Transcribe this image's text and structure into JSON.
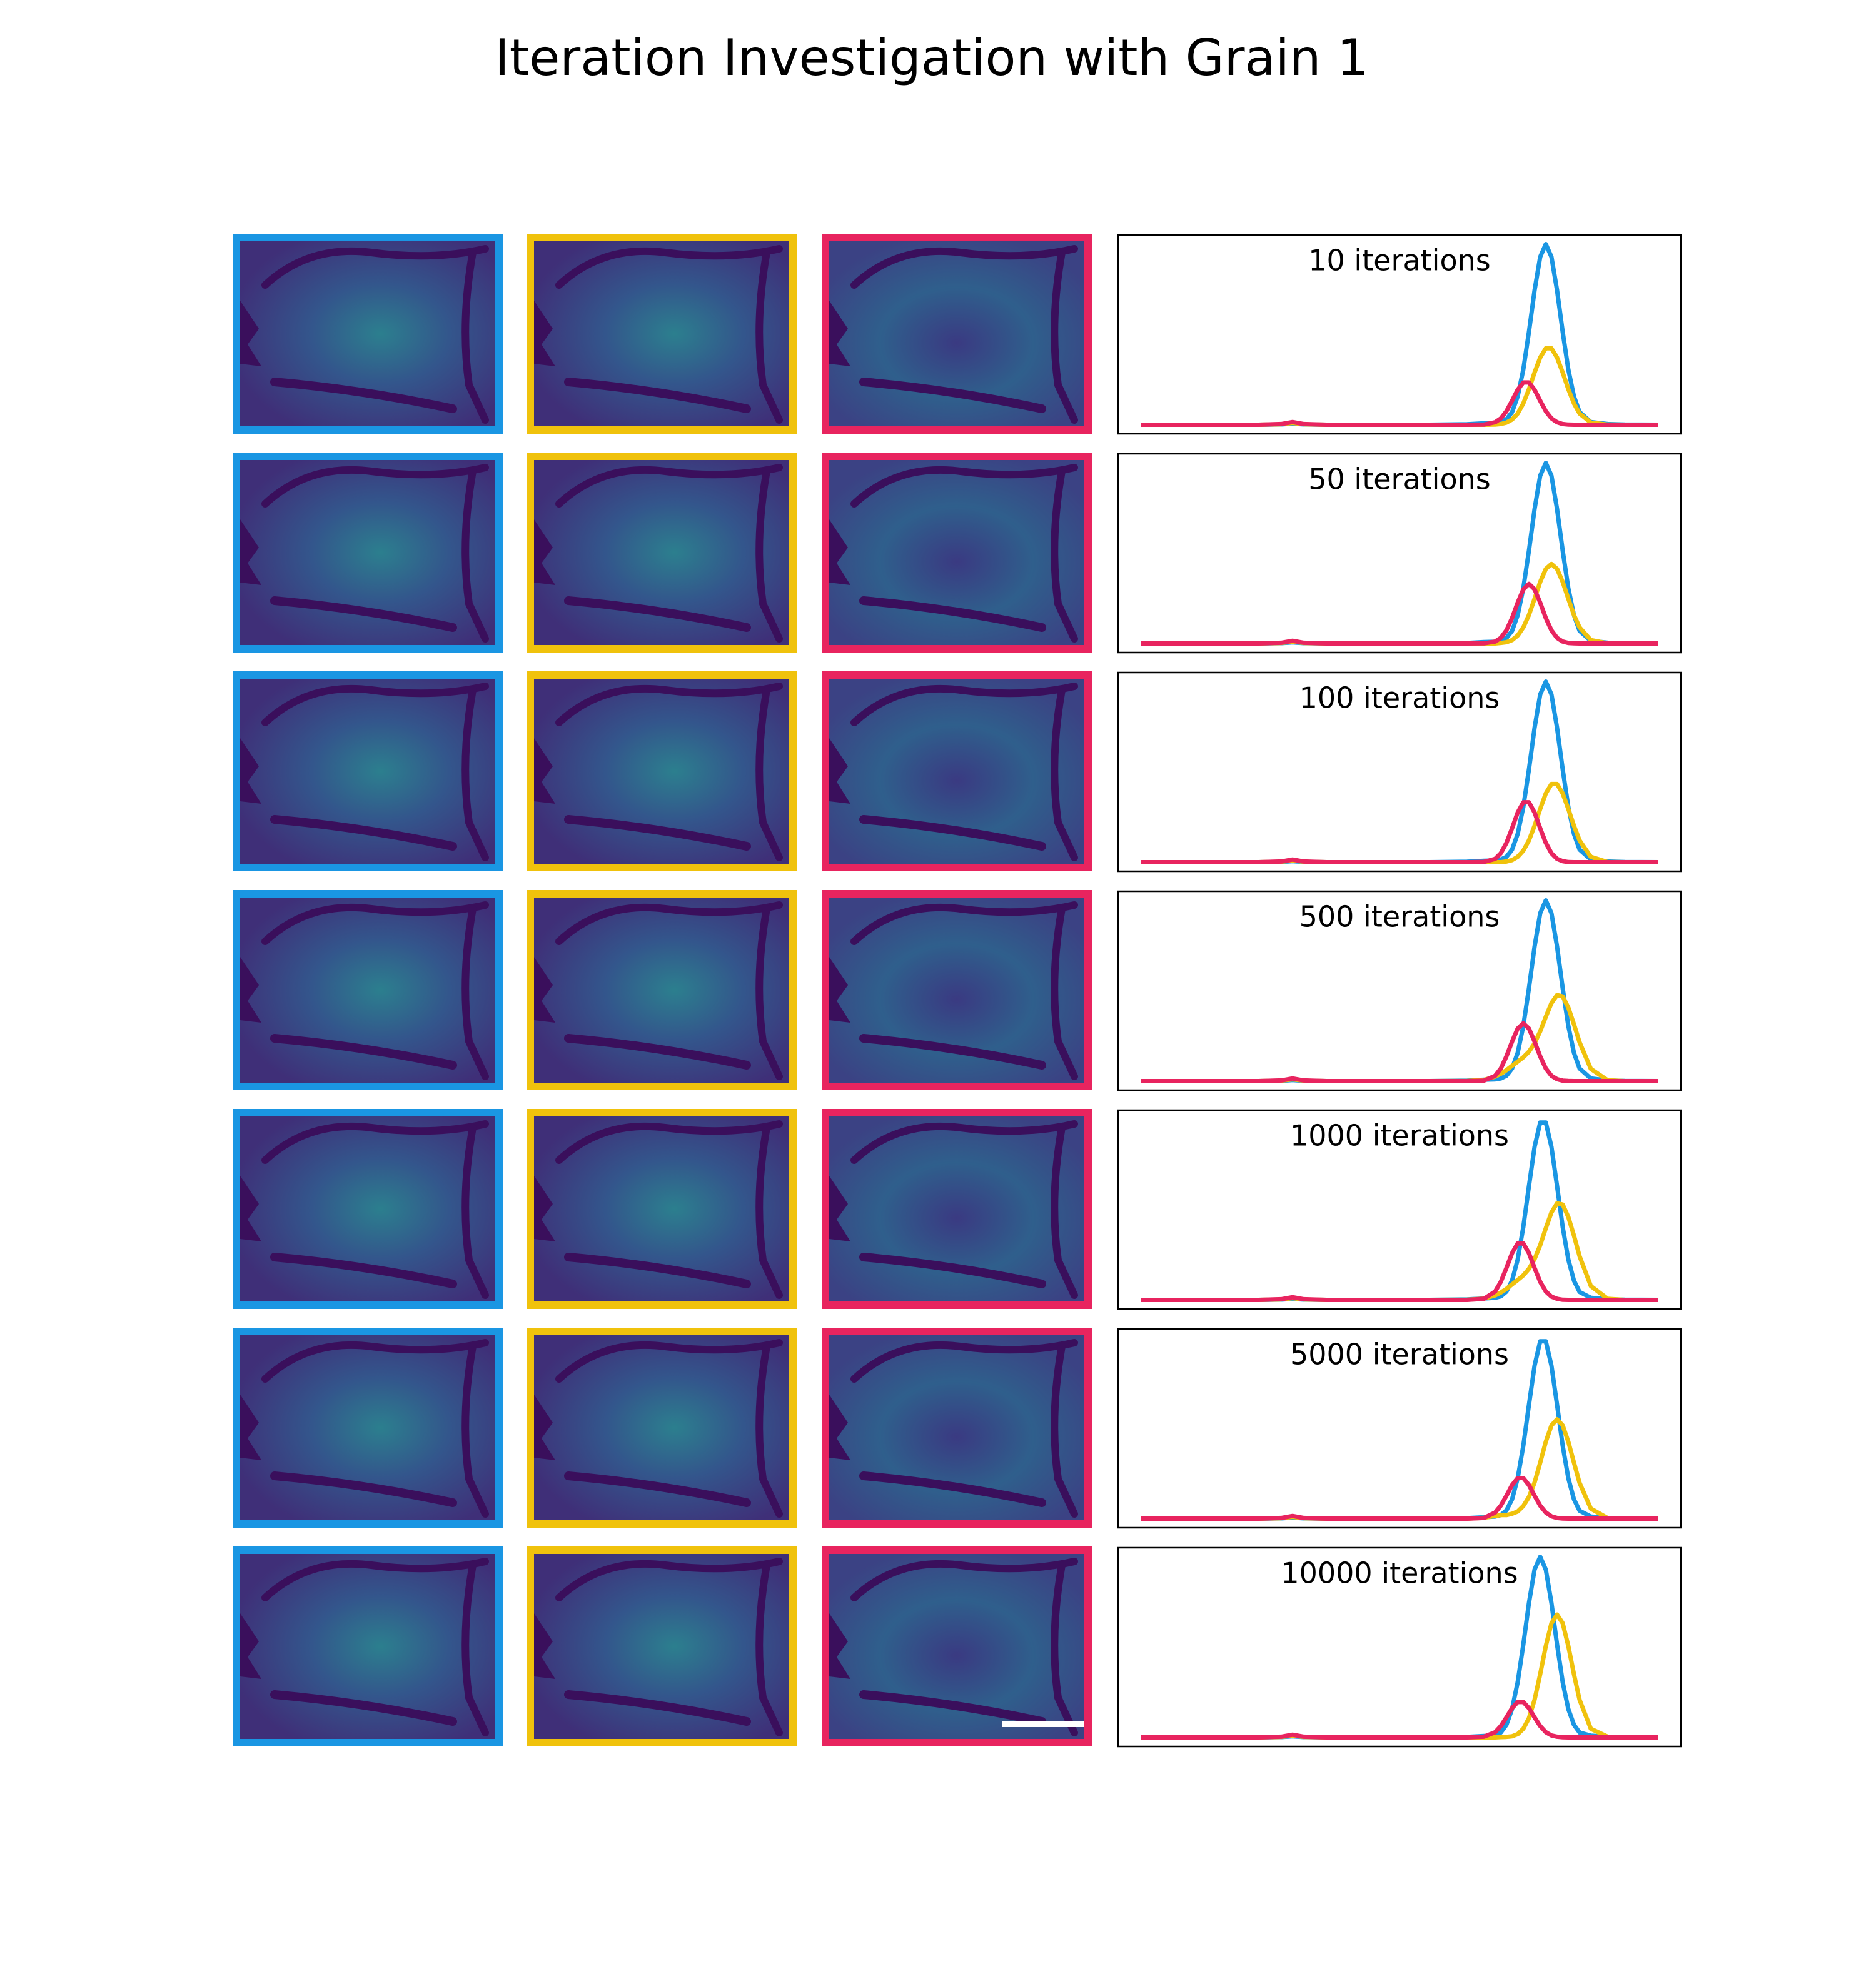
{
  "title": "Iteration Investigation with Grain 1",
  "chart_data": [
    {
      "type": "line",
      "title": "10 iterations",
      "xlim": [
        0,
        100
      ],
      "ylim": [
        -0.05,
        1.05
      ],
      "x": [
        4,
        25,
        29,
        31,
        33,
        37,
        55,
        62,
        65,
        67,
        68,
        69,
        70,
        71,
        72,
        73,
        74,
        75,
        76,
        77,
        78,
        79,
        80,
        81,
        82,
        84,
        87,
        90,
        96
      ],
      "series": [
        {
          "color": "#1a96e3",
          "values": [
            0,
            0,
            0.002,
            0.006,
            0.002,
            0,
            0,
            0.003,
            0.008,
            0.01,
            0.015,
            0.03,
            0.07,
            0.157,
            0.306,
            0.514,
            0.744,
            0.929,
            1,
            0.929,
            0.744,
            0.514,
            0.306,
            0.157,
            0.07,
            0.015,
            0.004,
            0.001,
            0
          ]
        },
        {
          "color": "#f0c20c",
          "values": [
            0,
            0,
            0.003,
            0.01,
            0.003,
            0,
            0,
            0,
            0,
            0.001,
            0.004,
            0.012,
            0.029,
            0.062,
            0.118,
            0.197,
            0.289,
            0.372,
            0.423,
            0.423,
            0.372,
            0.289,
            0.197,
            0.118,
            0.062,
            0.012,
            0.001,
            0,
            0
          ]
        },
        {
          "color": "#e8245f",
          "values": [
            0,
            0,
            0.004,
            0.015,
            0.004,
            0,
            0,
            0,
            0.001,
            0.014,
            0.035,
            0.075,
            0.133,
            0.194,
            0.234,
            0.234,
            0.194,
            0.133,
            0.075,
            0.035,
            0.014,
            0.004,
            0.001,
            0,
            0,
            0,
            0,
            0,
            0
          ]
        }
      ]
    },
    {
      "type": "line",
      "title": "50 iterations",
      "xlim": [
        0,
        100
      ],
      "ylim": [
        -0.05,
        1.05
      ],
      "x": [
        4,
        25,
        29,
        31,
        33,
        37,
        55,
        62,
        65,
        67,
        68,
        69,
        70,
        71,
        72,
        73,
        74,
        75,
        76,
        77,
        78,
        79,
        80,
        81,
        82,
        84,
        87,
        90,
        96
      ],
      "series": [
        {
          "color": "#1a96e3",
          "values": [
            0,
            0,
            0.002,
            0.006,
            0.002,
            0,
            0,
            0.003,
            0.008,
            0.01,
            0.015,
            0.03,
            0.07,
            0.157,
            0.306,
            0.514,
            0.744,
            0.929,
            1,
            0.929,
            0.744,
            0.514,
            0.306,
            0.157,
            0.07,
            0.015,
            0.004,
            0.001,
            0
          ]
        },
        {
          "color": "#f0c20c",
          "values": [
            0,
            0,
            0.003,
            0.01,
            0.003,
            0,
            0,
            0,
            0,
            0,
            0.003,
            0.007,
            0.019,
            0.044,
            0.089,
            0.158,
            0.248,
            0.341,
            0.413,
            0.44,
            0.413,
            0.341,
            0.248,
            0.158,
            0.089,
            0.019,
            0.001,
            0,
            0
          ]
        },
        {
          "color": "#e8245f",
          "values": [
            0,
            0,
            0.004,
            0.015,
            0.004,
            0,
            0,
            0,
            0.001,
            0.011,
            0.031,
            0.073,
            0.141,
            0.226,
            0.3,
            0.33,
            0.3,
            0.226,
            0.141,
            0.073,
            0.031,
            0.011,
            0.003,
            0.001,
            0,
            0,
            0,
            0,
            0
          ]
        }
      ]
    },
    {
      "type": "line",
      "title": "100 iterations",
      "xlim": [
        0,
        100
      ],
      "ylim": [
        -0.05,
        1.05
      ],
      "x": [
        4,
        25,
        29,
        31,
        33,
        37,
        55,
        62,
        65,
        67,
        68,
        69,
        70,
        71,
        72,
        73,
        74,
        75,
        76,
        77,
        78,
        79,
        80,
        81,
        82,
        84,
        87,
        90,
        96
      ],
      "series": [
        {
          "color": "#1a96e3",
          "values": [
            0,
            0,
            0.002,
            0.006,
            0.002,
            0,
            0,
            0.003,
            0.008,
            0.01,
            0.015,
            0.03,
            0.07,
            0.157,
            0.306,
            0.514,
            0.744,
            0.929,
            1,
            0.929,
            0.744,
            0.514,
            0.306,
            0.157,
            0.07,
            0.015,
            0.004,
            0.001,
            0
          ]
        },
        {
          "color": "#f0c20c",
          "values": [
            0,
            0,
            0.003,
            0.01,
            0.003,
            0,
            0,
            0,
            0,
            0,
            0,
            0.004,
            0.012,
            0.03,
            0.064,
            0.121,
            0.202,
            0.295,
            0.381,
            0.433,
            0.433,
            0.381,
            0.295,
            0.202,
            0.121,
            0.03,
            0.001,
            0,
            0
          ]
        },
        {
          "color": "#e8245f",
          "values": [
            0,
            0,
            0.004,
            0.015,
            0.004,
            0,
            0,
            0,
            0.002,
            0.019,
            0.05,
            0.107,
            0.188,
            0.275,
            0.332,
            0.332,
            0.275,
            0.188,
            0.107,
            0.05,
            0.019,
            0.006,
            0.001,
            0,
            0,
            0,
            0,
            0,
            0
          ]
        }
      ]
    },
    {
      "type": "line",
      "title": "500 iterations",
      "xlim": [
        0,
        100
      ],
      "ylim": [
        -0.05,
        1.05
      ],
      "x": [
        4,
        25,
        29,
        31,
        33,
        37,
        55,
        62,
        65,
        67,
        68,
        69,
        70,
        71,
        72,
        73,
        74,
        75,
        76,
        77,
        78,
        79,
        80,
        81,
        82,
        84,
        87,
        90,
        96
      ],
      "series": [
        {
          "color": "#1a96e3",
          "values": [
            0,
            0,
            0.002,
            0.006,
            0.002,
            0,
            0,
            0.003,
            0.008,
            0.01,
            0.015,
            0.03,
            0.07,
            0.157,
            0.306,
            0.514,
            0.744,
            0.929,
            1,
            0.929,
            0.744,
            0.514,
            0.306,
            0.157,
            0.07,
            0.015,
            0.004,
            0.001,
            0
          ]
        },
        {
          "color": "#f0c20c",
          "values": [
            0,
            0,
            0.003,
            0.01,
            0.003,
            0,
            0,
            0.001,
            0.007,
            0.025,
            0.041,
            0.061,
            0.085,
            0.108,
            0.132,
            0.163,
            0.209,
            0.276,
            0.356,
            0.432,
            0.476,
            0.469,
            0.407,
            0.315,
            0.215,
            0.068,
            0.005,
            0,
            0
          ]
        },
        {
          "color": "#e8245f",
          "values": [
            0,
            0,
            0.004,
            0.015,
            0.004,
            0,
            0,
            0,
            0.003,
            0.03,
            0.07,
            0.137,
            0.219,
            0.291,
            0.32,
            0.291,
            0.219,
            0.137,
            0.07,
            0.03,
            0.011,
            0.003,
            0.001,
            0,
            0,
            0,
            0,
            0,
            0
          ]
        }
      ]
    },
    {
      "type": "line",
      "title": "1000 iterations",
      "xlim": [
        0,
        100
      ],
      "ylim": [
        -0.05,
        1.05
      ],
      "x": [
        4,
        25,
        29,
        31,
        33,
        37,
        55,
        62,
        65,
        67,
        68,
        69,
        70,
        71,
        72,
        73,
        74,
        75,
        76,
        77,
        78,
        79,
        80,
        81,
        82,
        84,
        87,
        90,
        96
      ],
      "series": [
        {
          "color": "#1a96e3",
          "values": [
            0,
            0,
            0.002,
            0.006,
            0.002,
            0,
            0,
            0.003,
            0.008,
            0.012,
            0.02,
            0.046,
            0.107,
            0.224,
            0.404,
            0.63,
            0.847,
            0.982,
            0.982,
            0.847,
            0.63,
            0.404,
            0.224,
            0.107,
            0.044,
            0.012,
            0.004,
            0.001,
            0
          ]
        },
        {
          "color": "#f0c20c",
          "values": [
            0,
            0,
            0.003,
            0.01,
            0.003,
            0,
            0,
            0.001,
            0.007,
            0.025,
            0.041,
            0.061,
            0.086,
            0.11,
            0.136,
            0.172,
            0.226,
            0.303,
            0.397,
            0.484,
            0.535,
            0.528,
            0.459,
            0.356,
            0.242,
            0.077,
            0.006,
            0,
            0
          ]
        },
        {
          "color": "#e8245f",
          "values": [
            0,
            0,
            0.004,
            0.015,
            0.004,
            0,
            0,
            0,
            0.006,
            0.047,
            0.1,
            0.177,
            0.259,
            0.313,
            0.313,
            0.259,
            0.177,
            0.1,
            0.047,
            0.018,
            0.006,
            0.001,
            0,
            0,
            0,
            0,
            0,
            0,
            0
          ]
        }
      ]
    },
    {
      "type": "line",
      "title": "5000 iterations",
      "xlim": [
        0,
        100
      ],
      "ylim": [
        -0.05,
        1.05
      ],
      "x": [
        4,
        25,
        29,
        31,
        33,
        37,
        55,
        62,
        65,
        67,
        68,
        69,
        70,
        71,
        72,
        73,
        74,
        75,
        76,
        77,
        78,
        79,
        80,
        81,
        82,
        84,
        87,
        90,
        96
      ],
      "series": [
        {
          "color": "#1a96e3",
          "values": [
            0,
            0,
            0.002,
            0.006,
            0.002,
            0,
            0,
            0.003,
            0.008,
            0.012,
            0.02,
            0.046,
            0.107,
            0.224,
            0.404,
            0.63,
            0.847,
            0.982,
            0.982,
            0.847,
            0.63,
            0.404,
            0.224,
            0.107,
            0.044,
            0.012,
            0.004,
            0.001,
            0
          ]
        },
        {
          "color": "#f0c20c",
          "values": [
            0,
            0,
            0.003,
            0.01,
            0.003,
            0,
            0,
            0,
            0.005,
            0.015,
            0.02,
            0.02,
            0.027,
            0.04,
            0.07,
            0.12,
            0.2,
            0.31,
            0.426,
            0.516,
            0.55,
            0.516,
            0.426,
            0.31,
            0.198,
            0.056,
            0.003,
            0,
            0
          ]
        },
        {
          "color": "#e8245f",
          "values": [
            0,
            0,
            0.004,
            0.015,
            0.004,
            0,
            0,
            0,
            0.004,
            0.034,
            0.072,
            0.127,
            0.186,
            0.225,
            0.225,
            0.186,
            0.127,
            0.072,
            0.034,
            0.013,
            0.004,
            0.001,
            0,
            0,
            0,
            0,
            0,
            0,
            0
          ]
        }
      ]
    },
    {
      "type": "line",
      "title": "10000 iterations",
      "xlim": [
        0,
        100
      ],
      "ylim": [
        -0.05,
        1.05
      ],
      "x": [
        4,
        25,
        29,
        31,
        33,
        37,
        55,
        62,
        65,
        67,
        68,
        69,
        70,
        71,
        72,
        73,
        74,
        75,
        76,
        77,
        78,
        79,
        80,
        81,
        82,
        84,
        87,
        90,
        96
      ],
      "series": [
        {
          "color": "#1a96e3",
          "values": [
            0,
            0,
            0.002,
            0.006,
            0.002,
            0,
            0,
            0.003,
            0.008,
            0.012,
            0.027,
            0.07,
            0.157,
            0.306,
            0.514,
            0.744,
            0.929,
            1,
            0.929,
            0.744,
            0.514,
            0.306,
            0.157,
            0.07,
            0.027,
            0.01,
            0.004,
            0.001,
            0
          ]
        },
        {
          "color": "#f0c20c",
          "values": [
            0,
            0,
            0.003,
            0.01,
            0.003,
            0,
            0,
            0,
            0,
            0,
            0.002,
            0.003,
            0.006,
            0.018,
            0.048,
            0.107,
            0.208,
            0.35,
            0.506,
            0.632,
            0.68,
            0.632,
            0.506,
            0.35,
            0.208,
            0.048,
            0.004,
            0,
            0
          ]
        },
        {
          "color": "#e8245f",
          "values": [
            0,
            0,
            0.004,
            0.015,
            0.004,
            0,
            0,
            0,
            0.004,
            0.029,
            0.063,
            0.111,
            0.162,
            0.196,
            0.196,
            0.162,
            0.111,
            0.063,
            0.029,
            0.011,
            0.004,
            0.001,
            0,
            0,
            0,
            0,
            0,
            0,
            0
          ]
        }
      ]
    }
  ]
}
